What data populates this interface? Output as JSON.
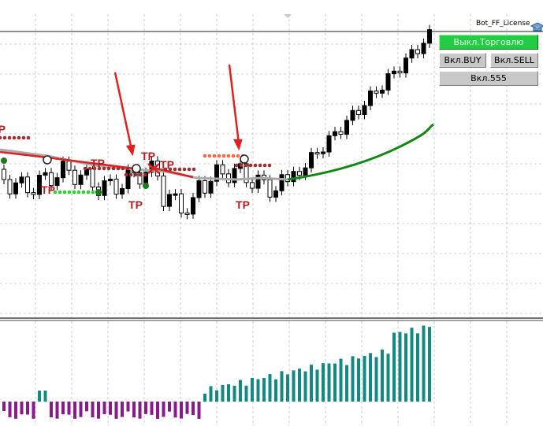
{
  "license_label": "Bot_FF_License",
  "buttons": {
    "trade": "Выкл.Торговлю",
    "buy": "Вкл.BUY",
    "sell": "Вкл.SELL",
    "extra": "Вкл.555"
  },
  "tp_labels": [
    "TP",
    "TP",
    "TP",
    "TP",
    "TP",
    "TP",
    "TP"
  ]
}
